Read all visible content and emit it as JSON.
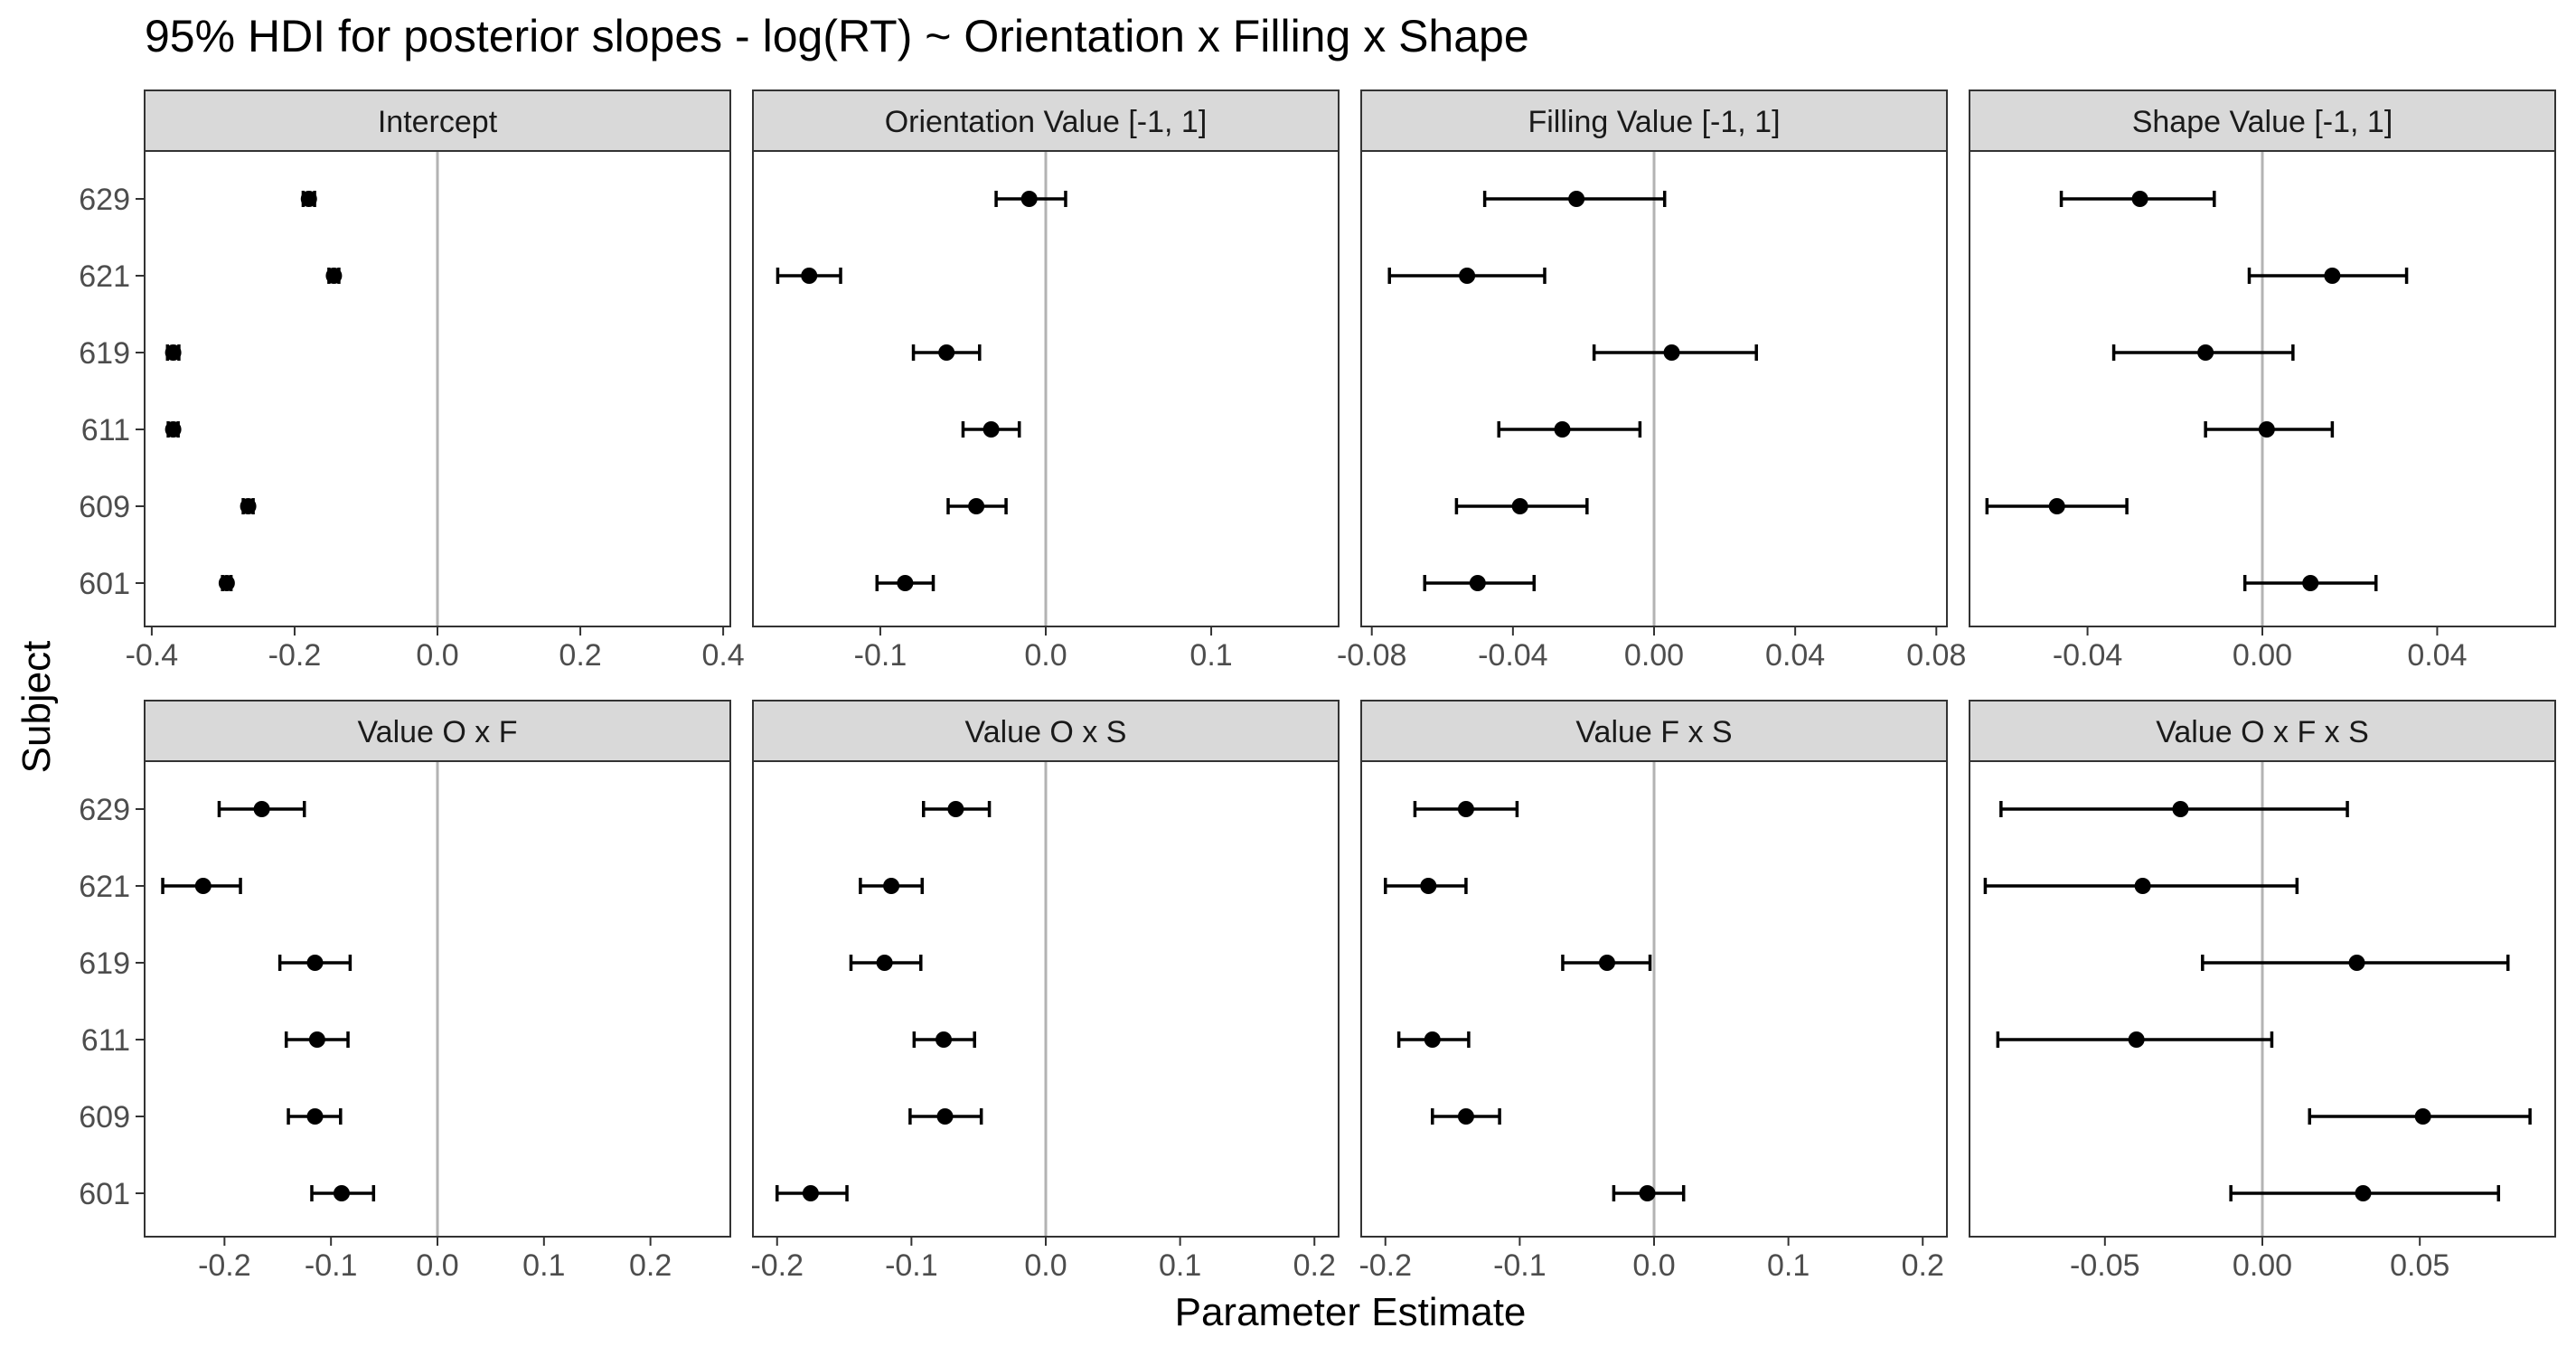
{
  "title": "95% HDI for posterior slopes - log(RT) ~ Orientation x Filling x Shape",
  "ylabel": "Subject",
  "xlabel": "Parameter Estimate",
  "colors": {
    "point": "#000000",
    "zero_line": "#b3b3b3",
    "strip_bg": "#d9d9d9",
    "panel_border": "#333333"
  },
  "chart_data": [
    {
      "type": "scatter",
      "panel": "Intercept",
      "categories": [
        "601",
        "609",
        "611",
        "619",
        "621",
        "629"
      ],
      "xlim": [
        -0.41,
        0.41
      ],
      "xticks": [
        -0.4,
        -0.2,
        0.0,
        0.2,
        0.4
      ],
      "xtick_labels": [
        "-0.4",
        "-0.2",
        "0.0",
        "0.2",
        "0.4"
      ],
      "estimates": [
        -0.295,
        -0.265,
        -0.37,
        -0.37,
        -0.145,
        -0.18
      ],
      "hdi_low": [
        -0.301,
        -0.272,
        -0.377,
        -0.378,
        -0.152,
        -0.188
      ],
      "hdi_high": [
        -0.289,
        -0.258,
        -0.363,
        -0.362,
        -0.138,
        -0.172
      ]
    },
    {
      "type": "scatter",
      "panel": "Orientation Value [-1, 1]",
      "categories": [
        "601",
        "609",
        "611",
        "619",
        "621",
        "629"
      ],
      "xlim": [
        -0.177,
        0.177
      ],
      "xticks": [
        -0.1,
        0.0,
        0.1
      ],
      "xtick_labels": [
        "-0.1",
        "0.0",
        "0.1"
      ],
      "estimates": [
        -0.085,
        -0.042,
        -0.033,
        -0.06,
        -0.143,
        -0.01
      ],
      "hdi_low": [
        -0.102,
        -0.059,
        -0.05,
        -0.08,
        -0.162,
        -0.03
      ],
      "hdi_high": [
        -0.068,
        -0.024,
        -0.016,
        -0.04,
        -0.124,
        0.012
      ]
    },
    {
      "type": "scatter",
      "panel": "Filling Value [-1, 1]",
      "categories": [
        "601",
        "609",
        "611",
        "619",
        "621",
        "629"
      ],
      "xlim": [
        -0.083,
        0.083
      ],
      "xticks": [
        -0.08,
        -0.04,
        0.0,
        0.04,
        0.08
      ],
      "xtick_labels": [
        "-0.08",
        "-0.04",
        "0.00",
        "0.04",
        "0.08"
      ],
      "estimates": [
        -0.05,
        -0.038,
        -0.026,
        0.005,
        -0.053,
        -0.022
      ],
      "hdi_low": [
        -0.065,
        -0.056,
        -0.044,
        -0.017,
        -0.075,
        -0.048
      ],
      "hdi_high": [
        -0.034,
        -0.019,
        -0.004,
        0.029,
        -0.031,
        0.003
      ]
    },
    {
      "type": "scatter",
      "panel": "Shape Value [-1, 1]",
      "categories": [
        "601",
        "609",
        "611",
        "619",
        "621",
        "629"
      ],
      "xlim": [
        -0.067,
        0.067
      ],
      "xticks": [
        -0.04,
        0.0,
        0.04
      ],
      "xtick_labels": [
        "-0.04",
        "0.00",
        "0.04"
      ],
      "estimates": [
        0.011,
        -0.047,
        0.001,
        -0.013,
        0.016,
        -0.028
      ],
      "hdi_low": [
        -0.004,
        -0.063,
        -0.013,
        -0.034,
        -0.003,
        -0.046
      ],
      "hdi_high": [
        0.026,
        -0.031,
        0.016,
        0.007,
        0.033,
        -0.011
      ]
    },
    {
      "type": "scatter",
      "panel": "Value O x F",
      "categories": [
        "601",
        "609",
        "611",
        "619",
        "621",
        "629"
      ],
      "xlim": [
        -0.275,
        0.275
      ],
      "xticks": [
        -0.2,
        -0.1,
        0.0,
        0.1,
        0.2
      ],
      "xtick_labels": [
        "-0.2",
        "-0.1",
        "0.0",
        "0.1",
        "0.2"
      ],
      "estimates": [
        -0.09,
        -0.115,
        -0.113,
        -0.115,
        -0.22,
        -0.165
      ],
      "hdi_low": [
        -0.118,
        -0.14,
        -0.142,
        -0.148,
        -0.258,
        -0.205
      ],
      "hdi_high": [
        -0.06,
        -0.091,
        -0.084,
        -0.082,
        -0.185,
        -0.125
      ]
    },
    {
      "type": "scatter",
      "panel": "Value O x S",
      "categories": [
        "601",
        "609",
        "611",
        "619",
        "621",
        "629"
      ],
      "xlim": [
        -0.218,
        0.218
      ],
      "xticks": [
        -0.2,
        -0.1,
        0.0,
        0.1,
        0.2
      ],
      "xtick_labels": [
        "-0.2",
        "-0.1",
        "0.0",
        "0.1",
        "0.2"
      ],
      "estimates": [
        -0.175,
        -0.075,
        -0.076,
        -0.12,
        -0.115,
        -0.067
      ],
      "hdi_low": [
        -0.2,
        -0.101,
        -0.098,
        -0.145,
        -0.138,
        -0.091
      ],
      "hdi_high": [
        -0.148,
        -0.048,
        -0.053,
        -0.093,
        -0.092,
        -0.042
      ]
    },
    {
      "type": "scatter",
      "panel": "Value F x S",
      "categories": [
        "601",
        "609",
        "611",
        "619",
        "621",
        "629"
      ],
      "xlim": [
        -0.218,
        0.218
      ],
      "xticks": [
        -0.2,
        -0.1,
        0.0,
        0.1,
        0.2
      ],
      "xtick_labels": [
        "-0.2",
        "-0.1",
        "0.0",
        "0.1",
        "0.2"
      ],
      "estimates": [
        -0.005,
        -0.14,
        -0.165,
        -0.035,
        -0.168,
        -0.14
      ],
      "hdi_low": [
        -0.03,
        -0.165,
        -0.19,
        -0.068,
        -0.2,
        -0.178
      ],
      "hdi_high": [
        0.022,
        -0.115,
        -0.138,
        -0.003,
        -0.14,
        -0.102
      ]
    },
    {
      "type": "scatter",
      "panel": "Value O x F x S",
      "categories": [
        "601",
        "609",
        "611",
        "619",
        "621",
        "629"
      ],
      "xlim": [
        -0.093,
        0.093
      ],
      "xticks": [
        -0.05,
        0.0,
        0.05
      ],
      "xtick_labels": [
        "-0.05",
        "0.00",
        "0.05"
      ],
      "estimates": [
        0.032,
        0.051,
        -0.04,
        0.03,
        -0.038,
        -0.026
      ],
      "hdi_low": [
        -0.01,
        0.015,
        -0.084,
        -0.019,
        -0.088,
        -0.083
      ],
      "hdi_high": [
        0.075,
        0.085,
        0.003,
        0.078,
        0.011,
        0.027
      ]
    }
  ]
}
